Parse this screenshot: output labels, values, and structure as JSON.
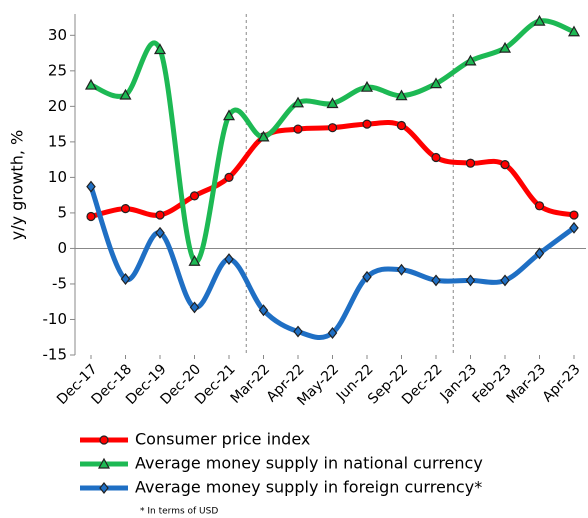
{
  "chart_data": {
    "type": "line",
    "y_label": "y/y growth, %",
    "categories": [
      "Dec-17",
      "Dec-18",
      "Dec-19",
      "Dec-20",
      "Dec-21",
      "Mar-22",
      "Apr-22",
      "May-22",
      "Jun-22",
      "Sep-22",
      "Dec-22",
      "Jan-23",
      "Feb-23",
      "Mar-23",
      "Apr-23"
    ],
    "series": [
      {
        "name": "Consumer price index",
        "color": "#ff0000",
        "marker": "circle",
        "values": [
          4.5,
          5.6,
          4.7,
          7.4,
          10,
          15.7,
          16.8,
          17,
          17.5,
          17.3,
          12.8,
          12,
          11.8,
          6,
          4.7
        ]
      },
      {
        "name": "Average money supply in national currency",
        "color": "#1db954",
        "marker": "triangle",
        "values": [
          23,
          21.6,
          28,
          -1.8,
          18.7,
          15.7,
          20.5,
          20.4,
          22.7,
          21.5,
          23.2,
          26.4,
          28.2,
          32,
          30.5
        ]
      },
      {
        "name": "Average money supply in foreign currency*",
        "color": "#1f6fc4",
        "marker": "diamond",
        "values": [
          8.7,
          -4.3,
          2.2,
          -8.3,
          -1.5,
          -8.7,
          -11.7,
          -11.9,
          -4,
          -3,
          -4.5,
          -4.5,
          -4.5,
          -0.7,
          2.9
        ]
      }
    ],
    "note": "* In terms of USD",
    "ylim": [
      -15,
      33
    ],
    "yticks": [
      -15,
      -10,
      -5,
      0,
      5,
      10,
      15,
      20,
      25,
      30
    ],
    "grid": false
  }
}
